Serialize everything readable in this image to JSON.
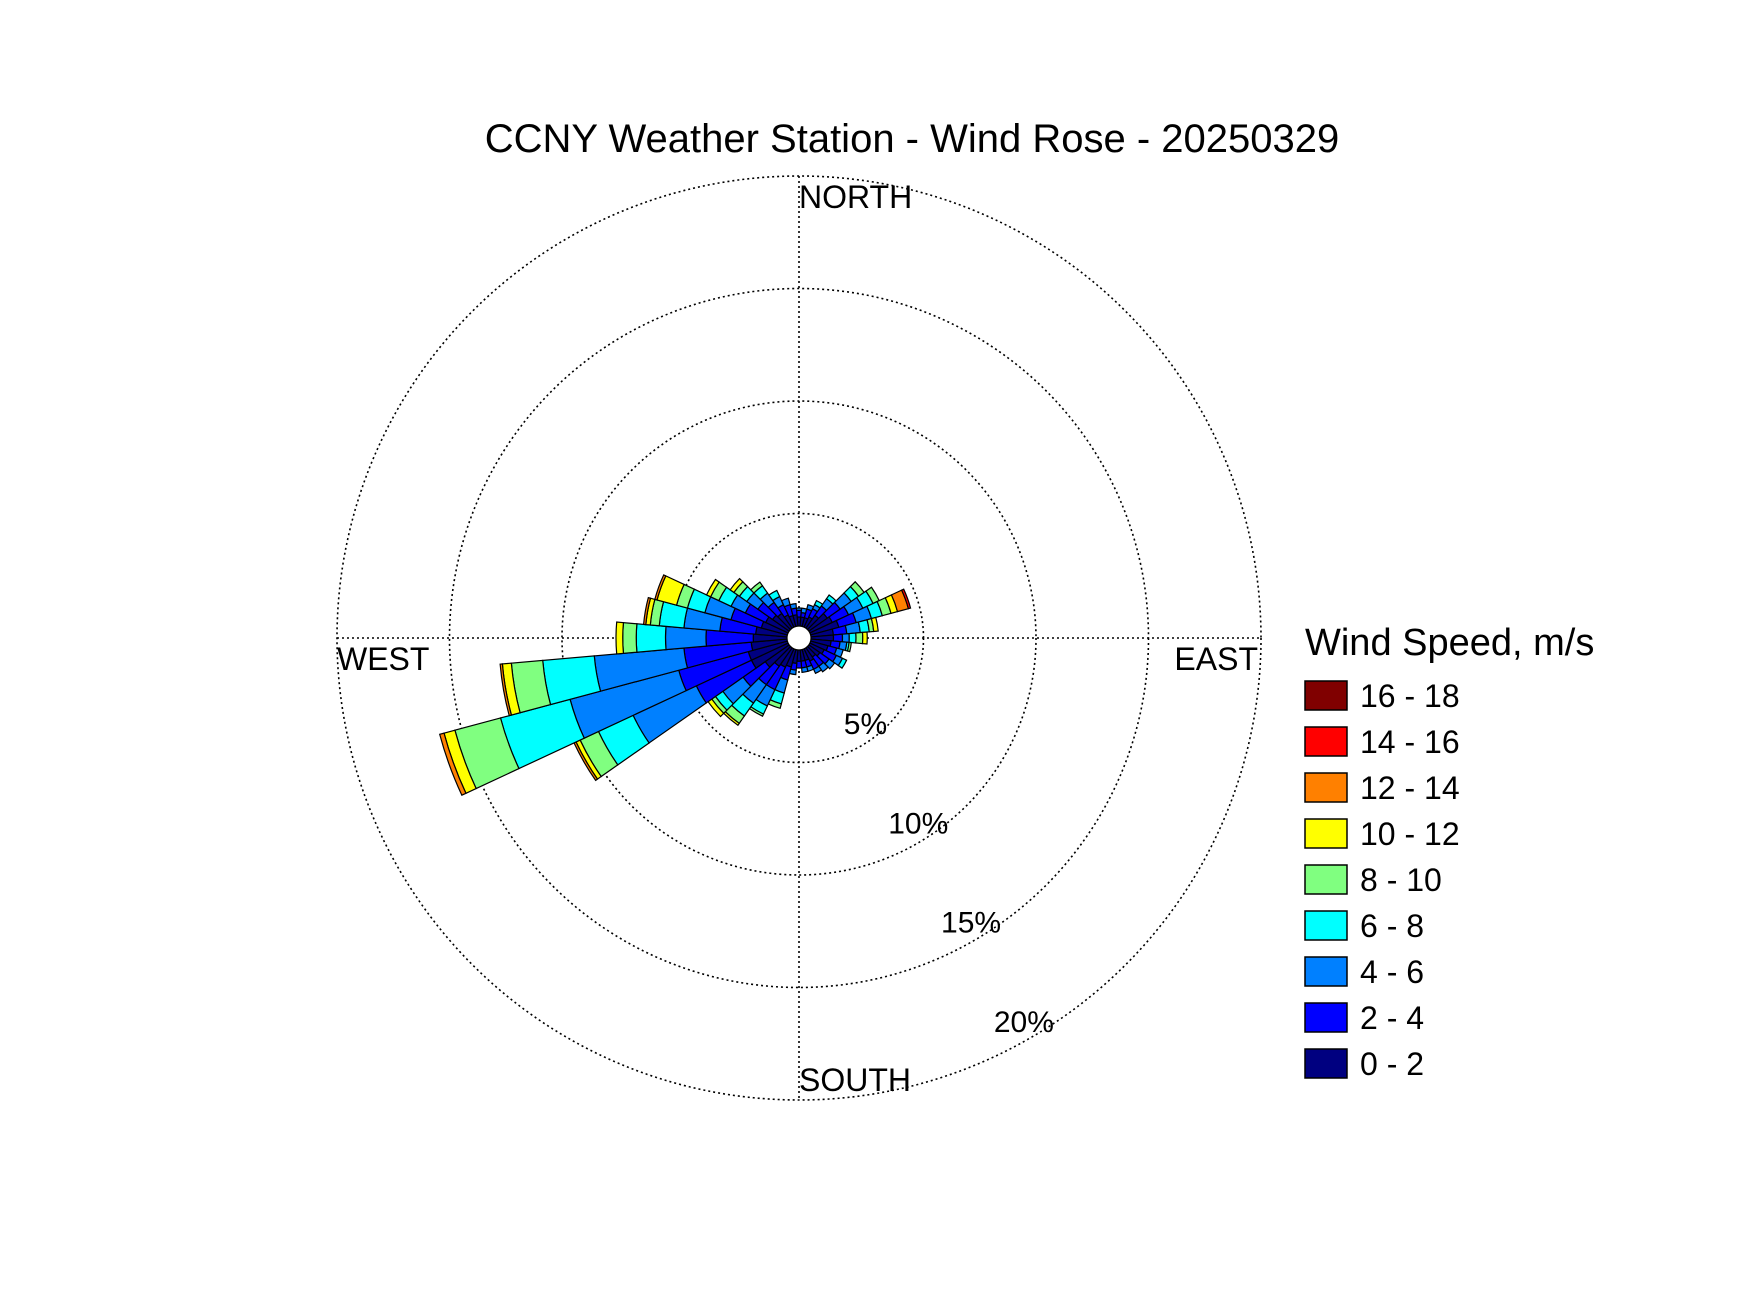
{
  "chart_data": {
    "type": "wind-rose",
    "title": "CCNY Weather Station - Wind Rose - 20250329",
    "directions": {
      "north": "NORTH",
      "east": "EAST",
      "south": "SOUTH",
      "west": "WEST"
    },
    "ring_values": [
      5,
      10,
      15,
      20
    ],
    "ring_labels": [
      "5%",
      "10%",
      "15%",
      "20%"
    ],
    "r_max_percent": 20,
    "grid": true,
    "legend": {
      "title": "Wind Speed, m/s",
      "position": "right",
      "bins": [
        {
          "label": "16 - 18",
          "color": "#800000"
        },
        {
          "label": "14 - 16",
          "color": "#ff0000"
        },
        {
          "label": "12 - 14",
          "color": "#ff8000"
        },
        {
          "label": "10 - 12",
          "color": "#ffff00"
        },
        {
          "label": "8 - 10",
          "color": "#80ff80"
        },
        {
          "label": "6 - 8",
          "color": "#00ffff"
        },
        {
          "label": "4 - 6",
          "color": "#0080ff"
        },
        {
          "label": "2 - 4",
          "color": "#0000ff"
        },
        {
          "label": "0 - 2",
          "color": "#000080"
        }
      ]
    },
    "bin_order_inner_to_outer": [
      "0 - 2",
      "2 - 4",
      "4 - 6",
      "6 - 8",
      "8 - 10",
      "10 - 12",
      "12 - 14",
      "14 - 16",
      "16 - 18"
    ],
    "sector_width_deg": 10,
    "sectors": [
      {
        "direction_deg": 0,
        "cumulative_percent": [
          0.4,
          0.7,
          0.8
        ]
      },
      {
        "direction_deg": 10,
        "cumulative_percent": [
          0.4,
          0.6,
          0.8
        ]
      },
      {
        "direction_deg": 20,
        "cumulative_percent": [
          0.4,
          0.8,
          1.0
        ]
      },
      {
        "direction_deg": 30,
        "cumulative_percent": [
          0.5,
          0.9,
          1.1,
          1.3
        ]
      },
      {
        "direction_deg": 40,
        "cumulative_percent": [
          0.7,
          1.2,
          1.6,
          1.8
        ]
      },
      {
        "direction_deg": 50,
        "cumulative_percent": [
          1.0,
          1.7,
          2.3,
          2.7,
          3.0
        ]
      },
      {
        "direction_deg": 60,
        "cumulative_percent": [
          1.1,
          1.9,
          2.6,
          3.1,
          3.4
        ]
      },
      {
        "direction_deg": 70,
        "cumulative_percent": [
          1.3,
          2.1,
          2.8,
          3.3,
          3.7,
          4.0,
          4.5,
          4.6
        ]
      },
      {
        "direction_deg": 80,
        "cumulative_percent": [
          1.0,
          1.6,
          2.2,
          2.6,
          2.8,
          3.0
        ]
      },
      {
        "direction_deg": 90,
        "cumulative_percent": [
          1.0,
          1.4,
          1.7,
          2.0,
          2.3,
          2.5
        ]
      },
      {
        "direction_deg": 100,
        "cumulative_percent": [
          0.9,
          1.3,
          1.6,
          1.7,
          1.8
        ]
      },
      {
        "direction_deg": 110,
        "cumulative_percent": [
          0.8,
          1.2,
          1.5
        ]
      },
      {
        "direction_deg": 120,
        "cumulative_percent": [
          0.7,
          1.3,
          1.6,
          1.8
        ]
      },
      {
        "direction_deg": 130,
        "cumulative_percent": [
          0.6,
          1.1,
          1.4
        ]
      },
      {
        "direction_deg": 140,
        "cumulative_percent": [
          0.5,
          1.0,
          1.3
        ]
      },
      {
        "direction_deg": 150,
        "cumulative_percent": [
          0.6,
          1.0,
          1.2
        ]
      },
      {
        "direction_deg": 160,
        "cumulative_percent": [
          0.5,
          0.8,
          1.0
        ]
      },
      {
        "direction_deg": 170,
        "cumulative_percent": [
          0.5,
          0.8,
          1.0
        ]
      },
      {
        "direction_deg": 180,
        "cumulative_percent": [
          0.5,
          0.8
        ]
      },
      {
        "direction_deg": 190,
        "cumulative_percent": [
          0.6,
          0.9,
          1.1
        ]
      },
      {
        "direction_deg": 200,
        "cumulative_percent": [
          0.8,
          1.4,
          2.0,
          2.5,
          2.7
        ]
      },
      {
        "direction_deg": 210,
        "cumulative_percent": [
          0.9,
          2.0,
          2.8,
          3.2,
          3.3
        ]
      },
      {
        "direction_deg": 220,
        "cumulative_percent": [
          1.0,
          2.0,
          3.0,
          3.7,
          4.1,
          4.2
        ]
      },
      {
        "direction_deg": 230,
        "cumulative_percent": [
          1.3,
          2.5,
          3.6,
          4.0,
          4.2,
          4.4
        ]
      },
      {
        "direction_deg": 240,
        "cumulative_percent": [
          1.8,
          4.5,
          7.6,
          9.3,
          10.2,
          10.4,
          10.5
        ]
      },
      {
        "direction_deg": 250,
        "cumulative_percent": [
          1.8,
          5.0,
          10.0,
          13.2,
          15.3,
          15.8,
          16.0
        ]
      },
      {
        "direction_deg": 260,
        "cumulative_percent": [
          1.6,
          4.6,
          8.6,
          10.9,
          12.3,
          12.7,
          12.8
        ]
      },
      {
        "direction_deg": 270,
        "cumulative_percent": [
          1.5,
          3.6,
          5.4,
          6.7,
          7.3,
          7.6
        ]
      },
      {
        "direction_deg": 280,
        "cumulative_percent": [
          1.4,
          3.0,
          4.6,
          5.7,
          6.1,
          6.3,
          6.4
        ]
      },
      {
        "direction_deg": 290,
        "cumulative_percent": [
          1.2,
          2.6,
          3.8,
          4.6,
          5.1,
          6.0,
          6.1
        ]
      },
      {
        "direction_deg": 300,
        "cumulative_percent": [
          1.1,
          2.1,
          2.8,
          3.4,
          3.8,
          4.0
        ]
      },
      {
        "direction_deg": 310,
        "cumulative_percent": [
          0.9,
          1.7,
          2.3,
          2.7,
          3.0,
          3.2
        ]
      },
      {
        "direction_deg": 320,
        "cumulative_percent": [
          0.8,
          1.4,
          1.9,
          2.3,
          2.5
        ]
      },
      {
        "direction_deg": 330,
        "cumulative_percent": [
          0.6,
          1.1,
          1.5,
          1.8
        ]
      },
      {
        "direction_deg": 340,
        "cumulative_percent": [
          0.5,
          1.0,
          1.3
        ]
      },
      {
        "direction_deg": 350,
        "cumulative_percent": [
          0.5,
          0.8,
          1.0
        ]
      }
    ]
  }
}
